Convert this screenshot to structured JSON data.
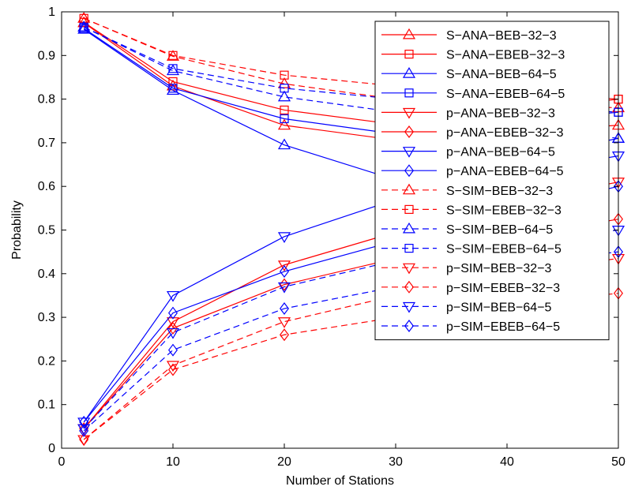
{
  "chart_data": {
    "type": "line",
    "xlabel": "Number of Stations",
    "ylabel": "Probability",
    "xlim": [
      0,
      50
    ],
    "ylim": [
      0,
      1
    ],
    "xticks": [
      "0",
      "10",
      "20",
      "30",
      "40",
      "50"
    ],
    "yticks": [
      "0",
      "0.1",
      "0.2",
      "0.3",
      "0.4",
      "0.5",
      "0.6",
      "0.7",
      "0.8",
      "0.9",
      "1"
    ],
    "grid": false,
    "legend_position": "top-right",
    "x": [
      2,
      10,
      20,
      30,
      40,
      50
    ],
    "series": [
      {
        "name": "S−ANA−BEB−32−3",
        "color": "#ff0000",
        "dash": "solid",
        "marker": "triangle-up",
        "values": [
          0.975,
          0.83,
          0.74,
          0.706,
          0.725,
          0.74
        ]
      },
      {
        "name": "S−ANA−EBEB−32−3",
        "color": "#ff0000",
        "dash": "solid",
        "marker": "square",
        "values": [
          0.976,
          0.84,
          0.775,
          0.742,
          0.77,
          0.8
        ]
      },
      {
        "name": "S−ANA−BEB−64−5",
        "color": "#0000ff",
        "dash": "solid",
        "marker": "triangle-up",
        "values": [
          0.96,
          0.82,
          0.695,
          0.615,
          0.66,
          0.71
        ]
      },
      {
        "name": "S−ANA−EBEB−64−5",
        "color": "#0000ff",
        "dash": "solid",
        "marker": "square",
        "values": [
          0.962,
          0.825,
          0.755,
          0.72,
          0.745,
          0.77
        ]
      },
      {
        "name": "p−ANA−BEB−32−3",
        "color": "#ff0000",
        "dash": "solid",
        "marker": "triangle-down",
        "values": [
          0.045,
          0.29,
          0.42,
          0.495,
          0.56,
          0.61
        ]
      },
      {
        "name": "p−ANA−EBEB−32−3",
        "color": "#ff0000",
        "dash": "solid",
        "marker": "diamond",
        "values": [
          0.045,
          0.275,
          0.375,
          0.435,
          0.48,
          0.525
        ]
      },
      {
        "name": "p−ANA−BEB−64−5",
        "color": "#0000ff",
        "dash": "solid",
        "marker": "triangle-down",
        "values": [
          0.06,
          0.35,
          0.485,
          0.57,
          0.625,
          0.67
        ]
      },
      {
        "name": "p−ANA−EBEB−64−5",
        "color": "#0000ff",
        "dash": "solid",
        "marker": "diamond",
        "values": [
          0.06,
          0.31,
          0.405,
          0.475,
          0.54,
          0.6
        ]
      },
      {
        "name": "S−SIM−BEB−32−3",
        "color": "#ff0000",
        "dash": "dashed",
        "marker": "triangle-up",
        "values": [
          0.985,
          0.898,
          0.835,
          0.8,
          0.79,
          0.78
        ]
      },
      {
        "name": "S−SIM−EBEB−32−3",
        "color": "#ff0000",
        "dash": "dashed",
        "marker": "square",
        "values": [
          0.985,
          0.9,
          0.855,
          0.83,
          0.815,
          0.8
        ]
      },
      {
        "name": "S−SIM−BEB−64−5",
        "color": "#0000ff",
        "dash": "dashed",
        "marker": "triangle-up",
        "values": [
          0.965,
          0.865,
          0.805,
          0.77,
          0.74,
          0.71
        ]
      },
      {
        "name": "S−SIM−EBEB−64−5",
        "color": "#0000ff",
        "dash": "dashed",
        "marker": "square",
        "values": [
          0.965,
          0.87,
          0.825,
          0.8,
          0.785,
          0.77
        ]
      },
      {
        "name": "p−SIM−BEB−32−3",
        "color": "#ff0000",
        "dash": "dashed",
        "marker": "triangle-down",
        "values": [
          0.02,
          0.19,
          0.29,
          0.35,
          0.4,
          0.435
        ]
      },
      {
        "name": "p−SIM−EBEB−32−3",
        "color": "#ff0000",
        "dash": "dashed",
        "marker": "diamond",
        "values": [
          0.02,
          0.18,
          0.26,
          0.3,
          0.33,
          0.355
        ]
      },
      {
        "name": "p−SIM−BEB−64−5",
        "color": "#0000ff",
        "dash": "dashed",
        "marker": "triangle-down",
        "values": [
          0.045,
          0.265,
          0.37,
          0.43,
          0.47,
          0.5
        ]
      },
      {
        "name": "p−SIM−EBEB−64−5",
        "color": "#0000ff",
        "dash": "dashed",
        "marker": "diamond",
        "values": [
          0.04,
          0.225,
          0.32,
          0.37,
          0.42,
          0.45
        ]
      }
    ]
  }
}
